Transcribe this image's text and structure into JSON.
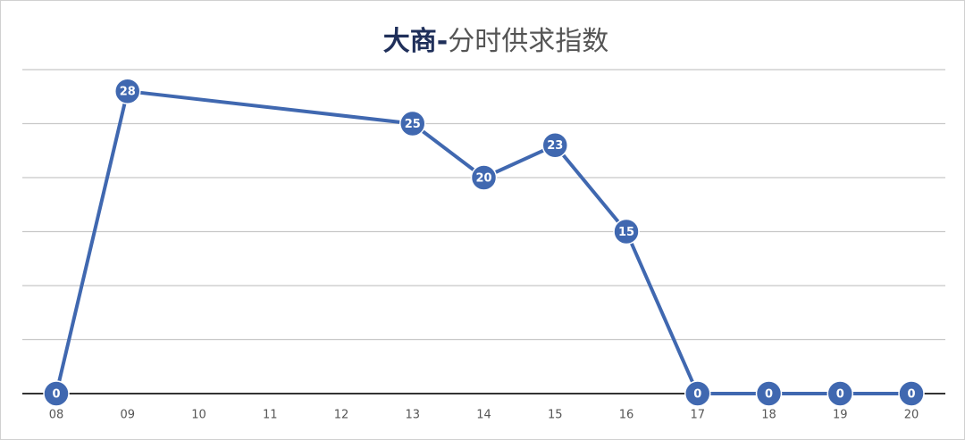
{
  "chart_data": {
    "type": "line",
    "title": [
      "大商-",
      "分时供求指数"
    ],
    "x": [
      8,
      9,
      13,
      14,
      15,
      16,
      17,
      18,
      19,
      20
    ],
    "series": [
      {
        "color": "#4068b0",
        "values": [
          0,
          28,
          25,
          20,
          23,
          15,
          0,
          0,
          0,
          0
        ]
      }
    ],
    "xlim": [
      8,
      20
    ],
    "xticks": [
      {
        "value": 8,
        "label": "08"
      },
      {
        "value": 9,
        "label": "09"
      },
      10,
      11,
      12,
      13,
      14,
      15,
      16,
      17,
      18,
      19,
      20
    ],
    "ylim": [
      0,
      30
    ],
    "yticks": [
      0,
      5,
      10,
      15,
      20,
      25,
      30
    ],
    "grid": true,
    "data_labels": true
  }
}
